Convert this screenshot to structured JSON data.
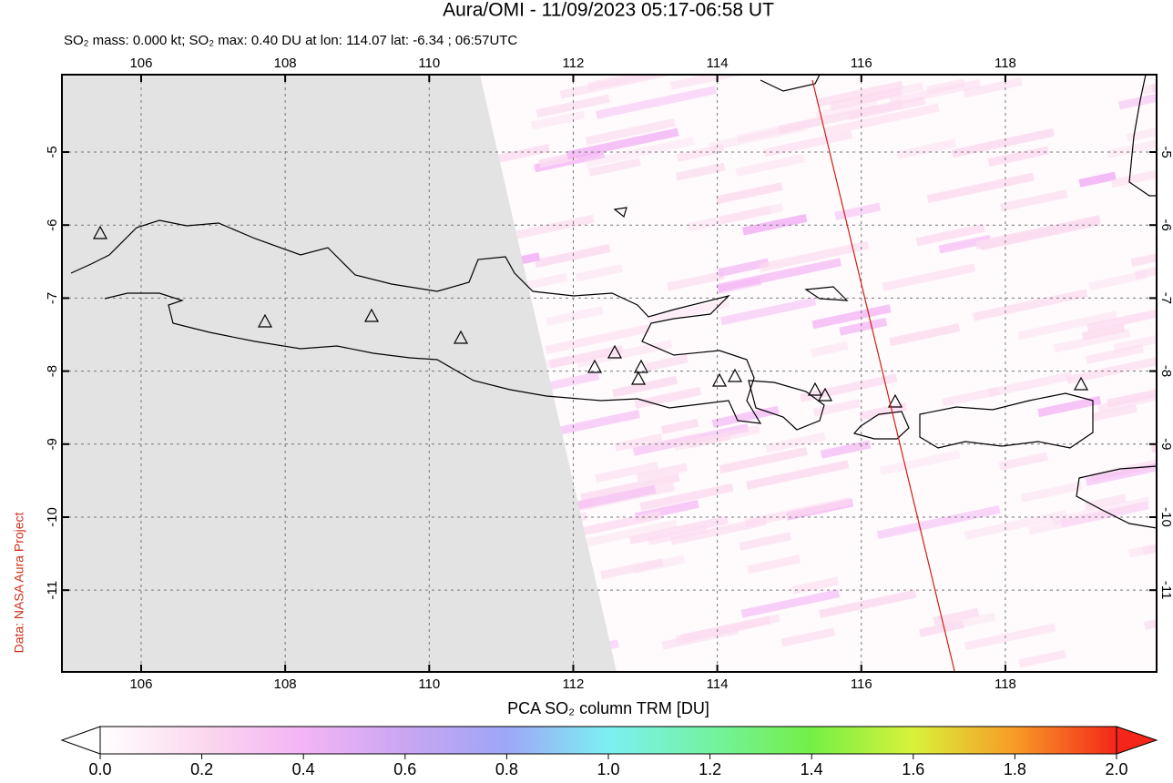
{
  "map": {
    "title": "Aura/OMI - 11/09/2023 05:17-06:58 UT",
    "subtitle": "SO₂ mass: 0.000 kt; SO₂ max: 0.40 DU at lon: 114.07 lat: -6.34 ; 06:57UTC",
    "credit": "Data: NASA Aura Project",
    "xlim": [
      104.9,
      120.1
    ],
    "ylim": [
      -12.12,
      -3.94
    ],
    "xticks": [
      106,
      108,
      110,
      112,
      114,
      116,
      118
    ],
    "yticks": [
      -5,
      -6,
      -7,
      -8,
      -9,
      -10,
      -11
    ],
    "grid": true,
    "colorbar": {
      "label": "PCA SO₂ column TRM [DU]",
      "lim": [
        0,
        2
      ],
      "ticks": [
        {
          "value": 0,
          "label": "0.0"
        },
        {
          "value": 0.2,
          "label": "0.2"
        },
        {
          "value": 0.4,
          "label": "0.4"
        },
        {
          "value": 0.6,
          "label": "0.6"
        },
        {
          "value": 0.8,
          "label": "0.8"
        },
        {
          "value": 1,
          "label": "1.0"
        },
        {
          "value": 1.2,
          "label": "1.2"
        },
        {
          "value": 1.4,
          "label": "1.4"
        },
        {
          "value": 1.6,
          "label": "1.6"
        },
        {
          "value": 1.8,
          "label": "1.8"
        },
        {
          "value": 2,
          "label": "2.0"
        }
      ]
    }
  }
}
